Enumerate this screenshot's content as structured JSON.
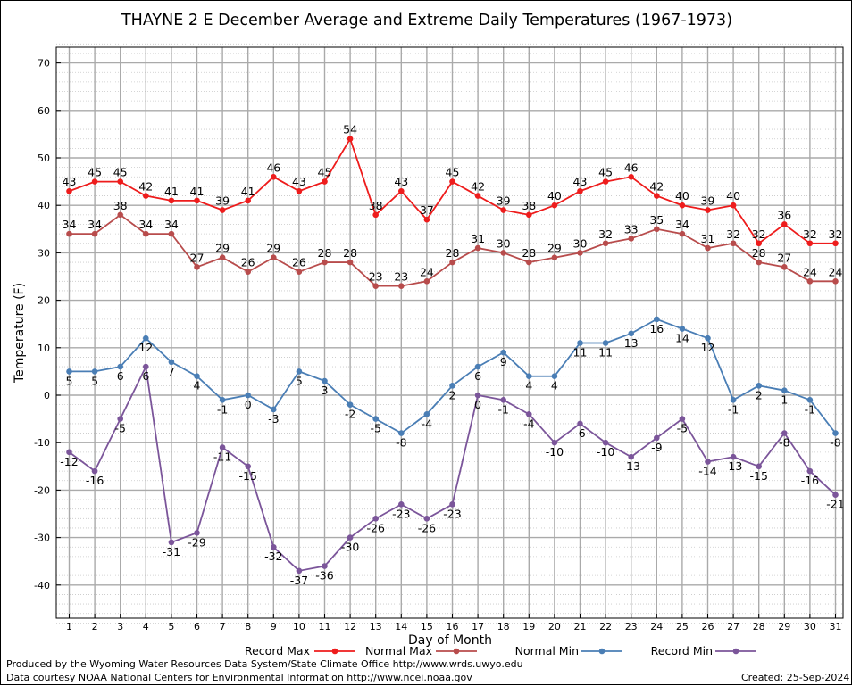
{
  "chart_data": {
    "type": "line",
    "title": "THAYNE 2 E December Average and Extreme Daily Temperatures (1967-1973)",
    "xlabel": "Day of Month",
    "ylabel": "Temperature (F)",
    "x": [
      1,
      2,
      3,
      4,
      5,
      6,
      7,
      8,
      9,
      10,
      11,
      12,
      13,
      14,
      15,
      16,
      17,
      18,
      19,
      20,
      21,
      22,
      23,
      24,
      25,
      26,
      27,
      28,
      29,
      30,
      31
    ],
    "ylim": [
      -48,
      74
    ],
    "yticks": [
      -40,
      -30,
      -20,
      -10,
      0,
      10,
      20,
      30,
      40,
      50,
      60,
      70
    ],
    "grid": true,
    "legend_position": "bottom",
    "series": [
      {
        "name": "Record Max",
        "color": "#ee1c1c",
        "values": [
          43,
          45,
          45,
          42,
          41,
          41,
          39,
          41,
          46,
          43,
          45,
          54,
          38,
          43,
          37,
          45,
          42,
          39,
          38,
          40,
          43,
          45,
          46,
          42,
          40,
          39,
          40,
          32,
          36,
          32,
          32
        ]
      },
      {
        "name": "Normal Max",
        "color": "#b84c4c",
        "values": [
          34,
          34,
          38,
          34,
          34,
          27,
          29,
          26,
          29,
          26,
          28,
          28,
          23,
          23,
          24,
          28,
          31,
          30,
          28,
          29,
          30,
          32,
          33,
          35,
          34,
          31,
          32,
          28,
          27,
          24,
          24
        ]
      },
      {
        "name": "Normal Min",
        "color": "#4a7eb5",
        "values": [
          5,
          5,
          6,
          12,
          7,
          4,
          -1,
          0,
          -3,
          5,
          3,
          -2,
          -5,
          -8,
          -4,
          2,
          6,
          9,
          4,
          4,
          11,
          11,
          13,
          16,
          14,
          12,
          -1,
          2,
          1,
          -1,
          -8
        ]
      },
      {
        "name": "Record Min",
        "color": "#7b559a",
        "values": [
          -12,
          -16,
          -5,
          6,
          -31,
          -29,
          -11,
          -15,
          -32,
          -37,
          -36,
          -30,
          -26,
          -23,
          -26,
          -23,
          0,
          -1,
          -4,
          -10,
          -6,
          -10,
          -13,
          -9,
          -5,
          -14,
          -13,
          -15,
          -8,
          -16,
          -21
        ]
      }
    ]
  },
  "footer": {
    "produced_by": "Produced by the Wyoming Water Resources Data System/State Climate Office http://www.wrds.uwyo.edu",
    "data_courtesy": "Data courtesy NOAA National Centers for Environmental Information http://www.ncei.noaa.gov",
    "created": "Created:  25-Sep-2024"
  }
}
